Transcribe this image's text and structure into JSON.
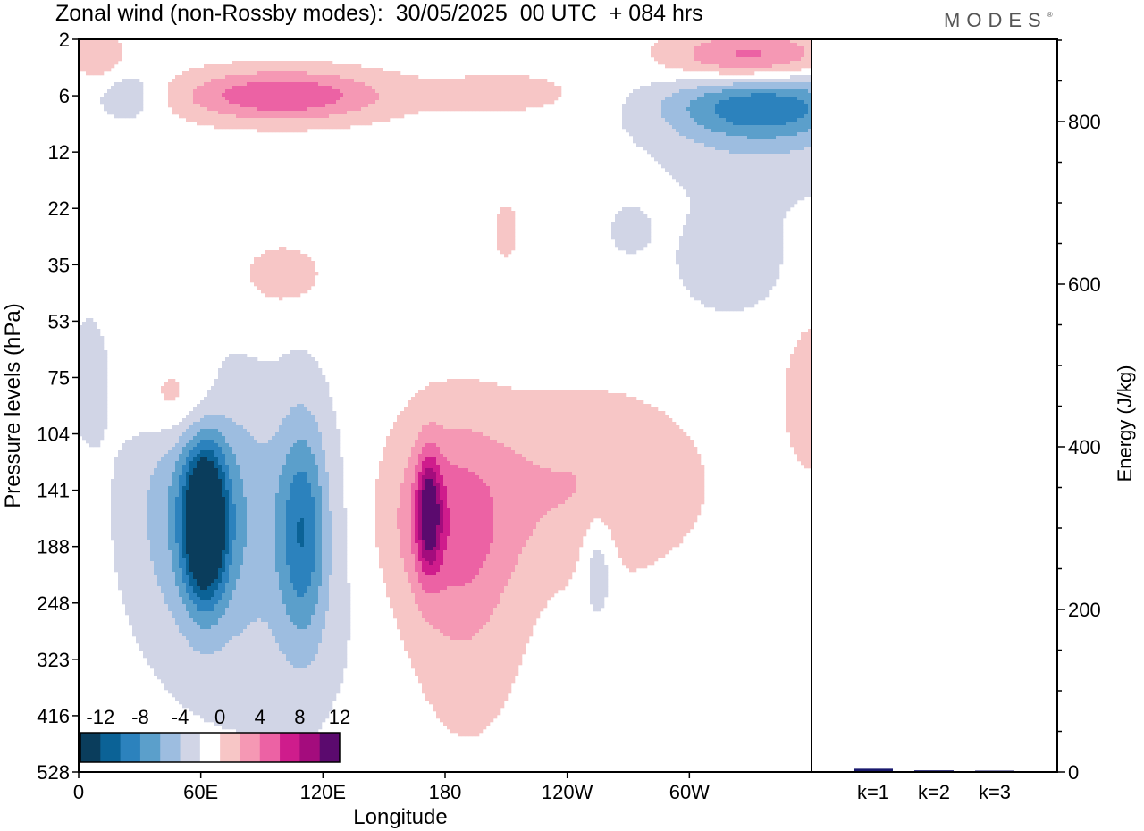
{
  "title": "Zonal wind (non-Rossby modes):  30/05/2025  00 UTC  + 084 hrs",
  "logo": "MODES",
  "logo_mark": "®",
  "colors": {
    "neg": [
      "#0a3d5c",
      "#0b6296",
      "#2c82bd",
      "#5b9fcb",
      "#9dbde0",
      "#d1d5e6"
    ],
    "pos": [
      "#f7c6c6",
      "#f598b4",
      "#ec62a4",
      "#cf1c8c",
      "#a40c7d",
      "#5b0a6e"
    ],
    "bar": "#1a1a6e"
  },
  "chart_data": [
    {
      "type": "heatmap",
      "title": "Zonal wind (non-Rossby modes):  30/05/2025  00 UTC  + 084 hrs",
      "xlabel": "Longitude",
      "ylabel": "Pressure levels (hPa)",
      "x_ticks": [
        "0",
        "60E",
        "120E",
        "180",
        "120W",
        "60W"
      ],
      "x_tick_degrees": [
        0,
        60,
        120,
        180,
        240,
        300
      ],
      "xlim": [
        0,
        360
      ],
      "y_ticks": [
        "2",
        "6",
        "12",
        "22",
        "35",
        "53",
        "75",
        "104",
        "141",
        "188",
        "248",
        "323",
        "416",
        "528"
      ],
      "colorbar": {
        "tick_labels": [
          "-12",
          "-8",
          "-4",
          "0",
          "4",
          "8",
          "12"
        ],
        "bins": 13
      },
      "features": [
        {
          "sign": -1,
          "lon": 62,
          "lev": 8.6,
          "rx": 10,
          "ry": 1.3,
          "amp": 14,
          "rot": -35
        },
        {
          "sign": -1,
          "lon": 60,
          "lev": 8.3,
          "rx": 32,
          "ry": 2.2,
          "amp": 5,
          "rot": -28
        },
        {
          "sign": -1,
          "lon": 110,
          "lev": 8.7,
          "rx": 12,
          "ry": 2.0,
          "amp": 7,
          "rot": -20
        },
        {
          "sign": -1,
          "lon": 95,
          "lev": 9.5,
          "rx": 55,
          "ry": 3.2,
          "amp": 2,
          "rot": -10
        },
        {
          "sign": -1,
          "lon": 335,
          "lev": 1.15,
          "rx": 45,
          "ry": 0.6,
          "amp": 7,
          "rot": 12
        },
        {
          "sign": -1,
          "lon": 335,
          "lev": 1.6,
          "rx": 55,
          "ry": 1.3,
          "amp": 2.5,
          "rot": 8
        },
        {
          "sign": -1,
          "lon": 25,
          "lev": 1.0,
          "rx": 18,
          "ry": 0.5,
          "amp": 2.5,
          "rot": 0
        },
        {
          "sign": -1,
          "lon": 5,
          "lev": 6.0,
          "rx": 10,
          "ry": 1.2,
          "amp": 2,
          "rot": 0
        },
        {
          "sign": -1,
          "lon": 255,
          "lev": 9.3,
          "rx": 8,
          "ry": 1.0,
          "amp": 3,
          "rot": 0
        },
        {
          "sign": -1,
          "lon": 320,
          "lev": 4.0,
          "rx": 30,
          "ry": 1.0,
          "amp": 2,
          "rot": 0
        },
        {
          "sign": -1,
          "lon": 270,
          "lev": 3.4,
          "rx": 12,
          "ry": 0.5,
          "amp": 1.5,
          "rot": 0
        },
        {
          "sign": 1,
          "lon": 172,
          "lev": 8.4,
          "rx": 6,
          "ry": 1.0,
          "amp": 9,
          "rot": 0
        },
        {
          "sign": 1,
          "lon": 180,
          "lev": 8.5,
          "rx": 32,
          "ry": 1.8,
          "amp": 5,
          "rot": 0
        },
        {
          "sign": 1,
          "lon": 250,
          "lev": 7.9,
          "rx": 55,
          "ry": 1.6,
          "amp": 3,
          "rot": 0
        },
        {
          "sign": 1,
          "lon": 190,
          "lev": 10.3,
          "rx": 30,
          "ry": 2.5,
          "amp": 2,
          "rot": 0
        },
        {
          "sign": 1,
          "lon": 100,
          "lev": 1.0,
          "rx": 50,
          "ry": 0.45,
          "amp": 7,
          "rot": -10
        },
        {
          "sign": 1,
          "lon": 330,
          "lev": 0.35,
          "rx": 40,
          "ry": 0.5,
          "amp": 7,
          "rot": -8
        },
        {
          "sign": 1,
          "lon": 50,
          "lev": 6.4,
          "rx": 20,
          "ry": 0.8,
          "amp": 3.5,
          "rot": -15
        },
        {
          "sign": 1,
          "lon": 10,
          "lev": 0.3,
          "rx": 12,
          "ry": 0.4,
          "amp": 3,
          "rot": 0
        },
        {
          "sign": 1,
          "lon": 100,
          "lev": 4.2,
          "rx": 25,
          "ry": 0.7,
          "amp": 1.8,
          "rot": 0
        },
        {
          "sign": 1,
          "lon": 210,
          "lev": 0.95,
          "rx": 40,
          "ry": 0.4,
          "amp": 1.8,
          "rot": -10
        },
        {
          "sign": 1,
          "lon": 360,
          "lev": 6.3,
          "rx": 15,
          "ry": 1.5,
          "amp": 2,
          "rot": 0
        },
        {
          "sign": 1,
          "lon": 210,
          "lev": 3.4,
          "rx": 8,
          "ry": 0.7,
          "amp": 1.5,
          "rot": 0
        }
      ]
    },
    {
      "type": "bar",
      "categories": [
        "k=1",
        "k=2",
        "k=3"
      ],
      "values": [
        4,
        2,
        0.5
      ],
      "ylabel": "Energy (J/kg)",
      "ylim": [
        0,
        900
      ],
      "y_ticks": [
        0,
        200,
        400,
        600,
        800
      ],
      "y_minor_step": 50
    }
  ]
}
